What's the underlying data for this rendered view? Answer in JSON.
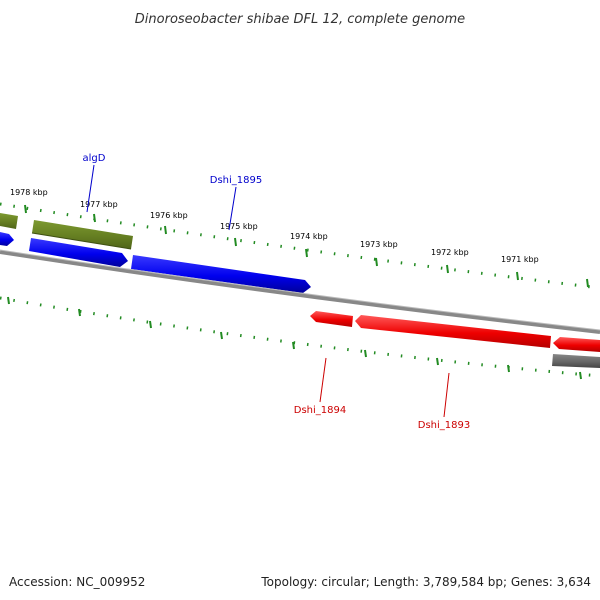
{
  "title": "Dinoroseobacter shibae DFL 12, complete genome",
  "footer": {
    "accession": "Accession: NC_009952",
    "summary": "Topology: circular; Length: 3,789,584 bp; Genes: 3,634"
  },
  "ticks": [
    "1978 kbp",
    "1977 kbp",
    "1976 kbp",
    "1975 kbp",
    "1974 kbp",
    "1973 kbp",
    "1972 kbp",
    "1971 kbp"
  ],
  "labels": {
    "algD": "algD",
    "dshi1895": "Dshi_1895",
    "dshi1894": "Dshi_1894",
    "dshi1893": "Dshi_1893"
  },
  "colors": {
    "forward_cds": "#0000ee",
    "reverse_cds": "#ee0000",
    "forward_gene": "#6b8e23",
    "reverse_gene": "#666666",
    "backbone": "#888888",
    "tick": "#228b22"
  }
}
